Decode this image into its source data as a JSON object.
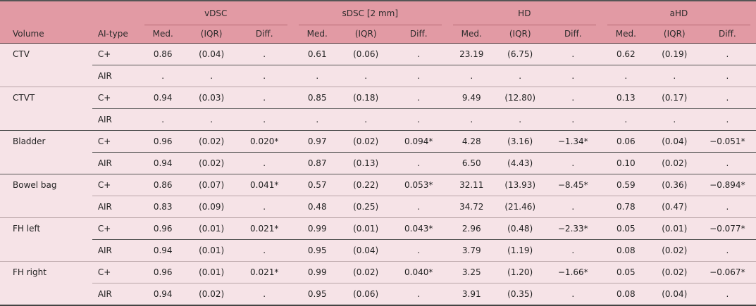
{
  "table": {
    "header": {
      "volume": "Volume",
      "ai_type": "AI-type",
      "groups": [
        "vDSC",
        "sDSC [2 mm]",
        "HD",
        "aHD"
      ],
      "subcols": [
        "Med.",
        "(IQR)",
        "Diff."
      ]
    },
    "rows": [
      {
        "volume": "CTV",
        "type": "C+",
        "v": [
          "0.86",
          "(0.04)",
          "."
        ],
        "s": [
          "0.61",
          "(0.06)",
          "."
        ],
        "h": [
          "23.19",
          "(6.75)",
          "."
        ],
        "a": [
          "0.62",
          "(0.19)",
          "."
        ]
      },
      {
        "volume": "",
        "type": "AIR",
        "v": [
          ".",
          ".",
          "."
        ],
        "s": [
          ".",
          ".",
          "."
        ],
        "h": [
          ".",
          ".",
          "."
        ],
        "a": [
          ".",
          ".",
          "."
        ]
      },
      {
        "volume": "CTVT",
        "type": "C+",
        "v": [
          "0.94",
          "(0.03)",
          "."
        ],
        "s": [
          "0.85",
          "(0.18)",
          "."
        ],
        "h": [
          "9.49",
          "(12.80)",
          "."
        ],
        "a": [
          "0.13",
          "(0.17)",
          "."
        ]
      },
      {
        "volume": "",
        "type": "AIR",
        "v": [
          ".",
          ".",
          "."
        ],
        "s": [
          ".",
          ".",
          "."
        ],
        "h": [
          ".",
          ".",
          "."
        ],
        "a": [
          ".",
          ".",
          "."
        ]
      },
      {
        "volume": "Bladder",
        "type": "C+",
        "v": [
          "0.96",
          "(0.02)",
          "0.020*"
        ],
        "s": [
          "0.97",
          "(0.02)",
          "0.094*"
        ],
        "h": [
          "4.28",
          "(3.16)",
          "−1.34*"
        ],
        "a": [
          "0.06",
          "(0.04)",
          "−0.051*"
        ]
      },
      {
        "volume": "",
        "type": "AIR",
        "v": [
          "0.94",
          "(0.02)",
          "."
        ],
        "s": [
          "0.87",
          "(0.13)",
          "."
        ],
        "h": [
          "6.50",
          "(4.43)",
          "."
        ],
        "a": [
          "0.10",
          "(0.02)",
          "."
        ]
      },
      {
        "volume": "Bowel bag",
        "type": "C+",
        "v": [
          "0.86",
          "(0.07)",
          "0.041*"
        ],
        "s": [
          "0.57",
          "(0.22)",
          "0.053*"
        ],
        "h": [
          "32.11",
          "(13.93)",
          "−8.45*"
        ],
        "a": [
          "0.59",
          "(0.36)",
          "−0.894*"
        ]
      },
      {
        "volume": "",
        "type": "AIR",
        "v": [
          "0.83",
          "(0.09)",
          "."
        ],
        "s": [
          "0.48",
          "(0.25)",
          "."
        ],
        "h": [
          "34.72",
          "(21.46)",
          "."
        ],
        "a": [
          "0.78",
          "(0.47)",
          "."
        ]
      },
      {
        "volume": "FH left",
        "type": "C+",
        "v": [
          "0.96",
          "(0.01)",
          "0.021*"
        ],
        "s": [
          "0.99",
          "(0.01)",
          "0.043*"
        ],
        "h": [
          "2.96",
          "(0.48)",
          "−2.33*"
        ],
        "a": [
          "0.05",
          "(0.01)",
          "−0.077*"
        ]
      },
      {
        "volume": "",
        "type": "AIR",
        "v": [
          "0.94",
          "(0.01)",
          "."
        ],
        "s": [
          "0.95",
          "(0.04)",
          "."
        ],
        "h": [
          "3.79",
          "(1.19)",
          "."
        ],
        "a": [
          "0.08",
          "(0.02)",
          "."
        ]
      },
      {
        "volume": "FH right",
        "type": "C+",
        "v": [
          "0.96",
          "(0.01)",
          "0.021*"
        ],
        "s": [
          "0.99",
          "(0.02)",
          "0.040*"
        ],
        "h": [
          "3.25",
          "(1.20)",
          "−1.66*"
        ],
        "a": [
          "0.05",
          "(0.02)",
          "−0.067*"
        ]
      },
      {
        "volume": "",
        "type": "AIR",
        "v": [
          "0.94",
          "(0.02)",
          "."
        ],
        "s": [
          "0.95",
          "(0.06)",
          "."
        ],
        "h": [
          "3.91",
          "(0.35)",
          "."
        ],
        "a": [
          "0.08",
          "(0.04)",
          "."
        ]
      }
    ]
  },
  "colors": {
    "header_bg": "#e29aa4",
    "body_bg": "#f6e3e7",
    "rule_dark": "#555555",
    "rule_light": "#b9a5a8"
  }
}
